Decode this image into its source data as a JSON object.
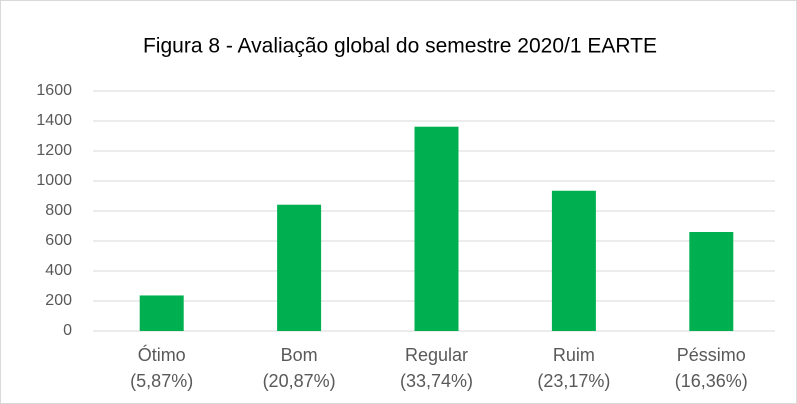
{
  "chart_data": {
    "type": "bar",
    "title": "Figura 8 - Avaliação global do semestre 2020/1 EARTE",
    "categories": [
      "Ótimo",
      "Bom",
      "Regular",
      "Ruim",
      "Péssimo"
    ],
    "category_sublabels": [
      "(5,87%)",
      "(20,87%)",
      "(33,74%)",
      "(23,17%)",
      "(16,36%)"
    ],
    "values": [
      237,
      842,
      1362,
      935,
      660
    ],
    "color": "#00b050",
    "ylim": [
      0,
      1600
    ],
    "yticks": [
      0,
      200,
      400,
      600,
      800,
      1000,
      1200,
      1400,
      1600
    ],
    "grid": true
  }
}
